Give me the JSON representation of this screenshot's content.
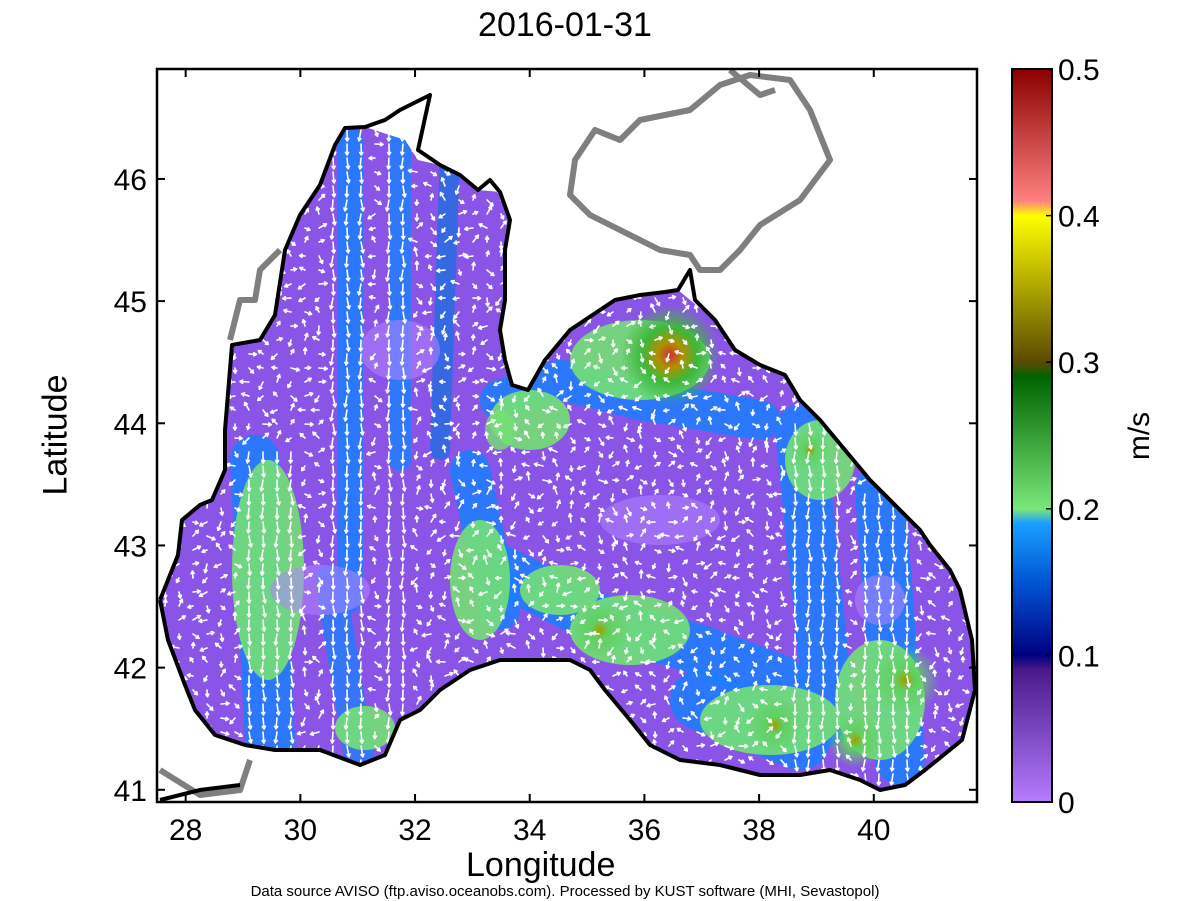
{
  "title": "2016-01-31",
  "xlabel": "Longitude",
  "ylabel": "Latitude",
  "colorbar": {
    "label": "m/s",
    "min": 0,
    "max": 0.5,
    "ticks": [
      "0",
      "0.1",
      "0.2",
      "0.3",
      "0.4",
      "0.5"
    ]
  },
  "footer": "Data source AVISO (ftp.aviso.oceanobs.com). Processed by KUST software (MHI, Sevastopol)",
  "map": {
    "region": "Black Sea",
    "lon_range": [
      27.5,
      41.8
    ],
    "lat_range": [
      40.9,
      46.9
    ],
    "x_ticks": [
      "28",
      "30",
      "32",
      "34",
      "36",
      "38",
      "40"
    ],
    "y_ticks": [
      "41",
      "42",
      "43",
      "44",
      "45",
      "46"
    ],
    "coast_color": "#000000",
    "land_color": "#7f7f7f",
    "arrow_color": "#ffffff"
  }
}
